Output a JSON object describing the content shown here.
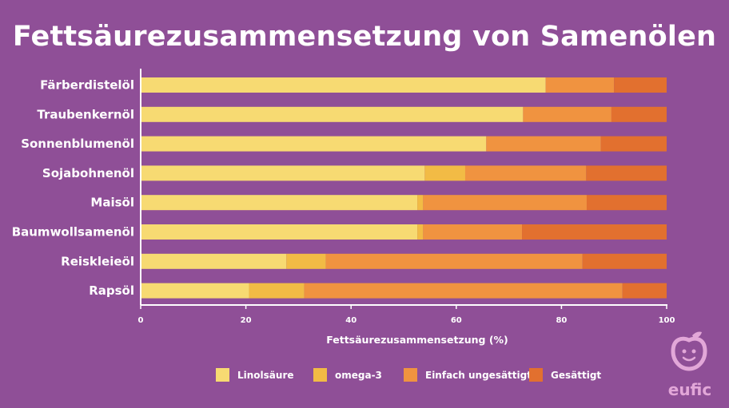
{
  "title": "Fettsäurezusammensetzung von Samenölen",
  "logo_text": "eufic",
  "chart_data": {
    "type": "bar",
    "orientation": "horizontal",
    "stacked": true,
    "title": "Fettsäurezusammensetzung von Samenölen",
    "xlabel": "Fettsäurezusammensetzung (%)",
    "ylabel": "",
    "xlim": [
      0,
      100
    ],
    "xticks": [
      0,
      20,
      40,
      60,
      80,
      100
    ],
    "legend_position": "bottom",
    "categories": [
      "Färberdistelöl",
      "Traubenkernöl",
      "Sonnenblumenöl",
      "Sojabohnenöl",
      "Maisöl",
      "Baumwollsamenöl",
      "Reiskleieöl",
      "Rapsöl"
    ],
    "series": [
      {
        "name": "Linolsäure",
        "color": "#f7da72",
        "values": [
          77,
          72.7,
          65.7,
          54,
          52.6,
          52.6,
          27.7,
          20.6
        ]
      },
      {
        "name": "omega-3",
        "color": "#f2bb45",
        "values": [
          0,
          0,
          0,
          7.7,
          1.1,
          1.1,
          7.5,
          10.5
        ]
      },
      {
        "name": "Einfach ungesättigt",
        "color": "#f09340",
        "values": [
          13,
          16.8,
          21.8,
          23,
          31.1,
          18.8,
          48.8,
          60.5
        ]
      },
      {
        "name": "Gesättigt",
        "color": "#e2702f",
        "values": [
          10,
          10.5,
          12.5,
          15.3,
          15.2,
          27.5,
          16,
          8.4
        ]
      }
    ]
  }
}
